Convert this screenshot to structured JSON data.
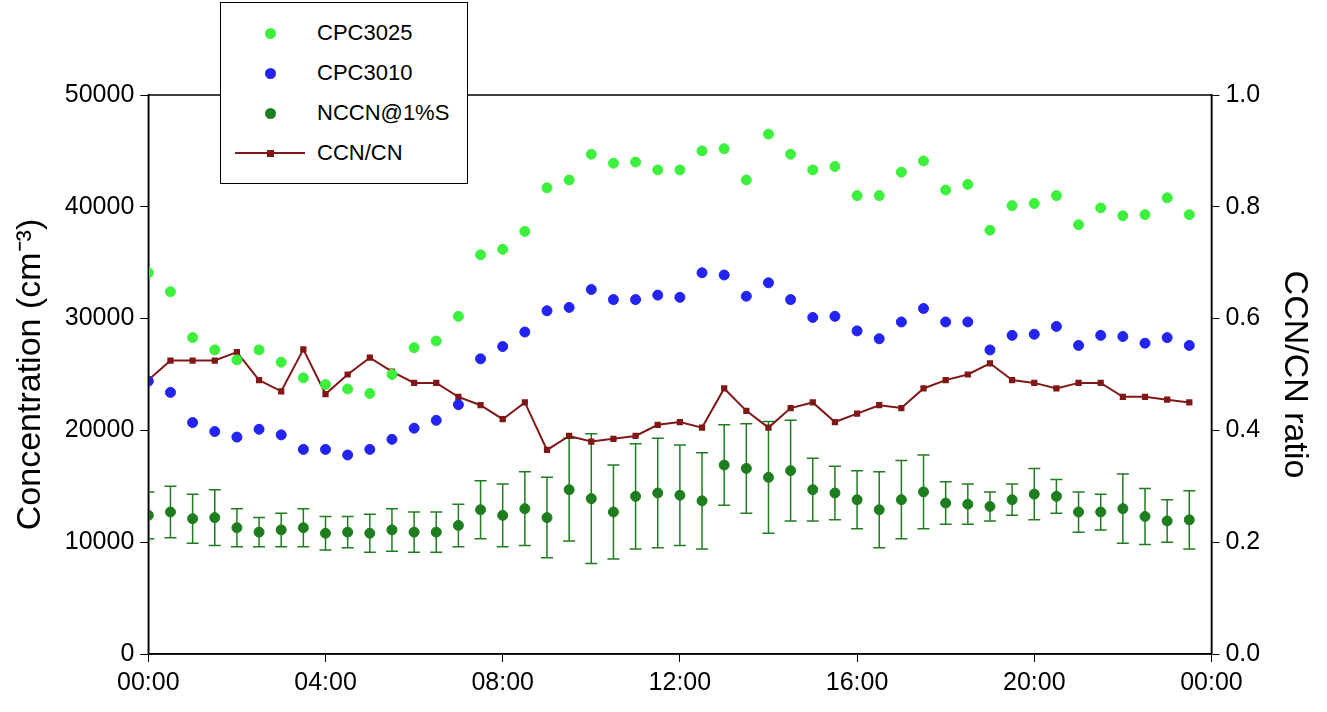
{
  "chart_data": {
    "type": "scatter",
    "y_label": "Concentration (cm⁻³)",
    "y2_label": "CCN/CN ratio",
    "legend": "upper left",
    "grid": false,
    "x": [
      0,
      0.5,
      1,
      1.5,
      2,
      2.5,
      3,
      3.5,
      4,
      4.5,
      5,
      5.5,
      6,
      6.5,
      7,
      7.5,
      8,
      8.5,
      9,
      9.5,
      10,
      10.5,
      11,
      11.5,
      12,
      12.5,
      13,
      13.5,
      14,
      14.5,
      15,
      15.5,
      16,
      16.5,
      17,
      17.5,
      18,
      18.5,
      19,
      19.5,
      20,
      20.5,
      21,
      21.5,
      22,
      22.5,
      23,
      23.5
    ],
    "xlim": [
      0,
      24
    ],
    "xticks": [
      {
        "value": 0,
        "label": "00:00"
      },
      {
        "value": 4,
        "label": "04:00"
      },
      {
        "value": 8,
        "label": "08:00"
      },
      {
        "value": 12,
        "label": "12:00"
      },
      {
        "value": 16,
        "label": "16:00"
      },
      {
        "value": 20,
        "label": "20:00"
      },
      {
        "value": 24,
        "label": "00:00"
      }
    ],
    "ylim": [
      0,
      50000
    ],
    "yticks": [
      0,
      10000,
      20000,
      30000,
      40000,
      50000
    ],
    "y2lim": [
      0,
      1.0
    ],
    "y2ticks": [
      {
        "value": 0,
        "label": "0.0"
      },
      {
        "value": 0.2,
        "label": "0.2"
      },
      {
        "value": 0.4,
        "label": "0.4"
      },
      {
        "value": 0.6,
        "label": "0.6"
      },
      {
        "value": 0.8,
        "label": "0.8"
      },
      {
        "value": 1.0,
        "label": "1.0"
      }
    ],
    "series": [
      {
        "name": "CPC3025",
        "color": "#3ef03e",
        "marker": "circle",
        "values": [
          34100,
          32400,
          28300,
          27200,
          26300,
          27200,
          26100,
          24700,
          24100,
          23700,
          23300,
          25000,
          27400,
          28000,
          30200,
          35700,
          36200,
          37800,
          41700,
          42400,
          44700,
          43900,
          44000,
          43300,
          43300,
          45000,
          45200,
          42400,
          46500,
          44700,
          43300,
          43600,
          41000,
          41000,
          43100,
          44100,
          41500,
          42000,
          37900,
          40100,
          40300,
          41000,
          38400,
          39900,
          39200,
          39300,
          40800,
          39300
        ]
      },
      {
        "name": "CPC3010",
        "color": "#2424f0",
        "marker": "circle",
        "values": [
          24400,
          23400,
          20700,
          19900,
          19400,
          20100,
          19600,
          18300,
          18300,
          17800,
          18300,
          19200,
          20200,
          20900,
          22300,
          26400,
          27500,
          28800,
          30700,
          31000,
          32600,
          31700,
          31700,
          32100,
          31900,
          34100,
          33900,
          32000,
          33200,
          31700,
          30100,
          30200,
          28900,
          28200,
          29700,
          30900,
          29700,
          29700,
          27200,
          28500,
          28600,
          29300,
          27600,
          28500,
          28400,
          27800,
          28300,
          27600
        ]
      },
      {
        "name": "NCCN@1%S",
        "color": "#1e7d1e",
        "marker": "circle",
        "values": [
          12400,
          12700,
          12100,
          12200,
          11300,
          10900,
          11100,
          11300,
          10800,
          10900,
          10800,
          11100,
          10900,
          10900,
          11500,
          12900,
          12400,
          13000,
          12200,
          14700,
          13900,
          12700,
          14100,
          14400,
          14200,
          13700,
          16900,
          16600,
          15800,
          16400,
          14700,
          14400,
          13800,
          12900,
          13800,
          14500,
          13500,
          13400,
          13200,
          13800,
          14300,
          14100,
          12700,
          12700,
          13000,
          12300,
          11900,
          12000
        ],
        "error": [
          2100,
          2300,
          2200,
          2500,
          1700,
          1300,
          1500,
          1700,
          1500,
          1400,
          1700,
          1900,
          1800,
          1800,
          1900,
          2600,
          2800,
          3300,
          3600,
          4600,
          5800,
          4200,
          4700,
          4900,
          4500,
          4300,
          3600,
          4000,
          5000,
          4500,
          2800,
          2400,
          2600,
          3400,
          3500,
          3300,
          1900,
          1800,
          1300,
          1400,
          2300,
          1500,
          1800,
          1600,
          3100,
          2500,
          1900,
          2600
        ]
      },
      {
        "name": "CCN/CN",
        "color": "#801818",
        "type": "line",
        "marker": "square",
        "line_style": "solid",
        "axis": "y2",
        "values": [
          0.49,
          0.525,
          0.525,
          0.525,
          0.54,
          0.49,
          0.47,
          0.545,
          0.465,
          0.5,
          0.53,
          0.505,
          0.485,
          0.485,
          0.46,
          0.445,
          0.42,
          0.45,
          0.365,
          0.39,
          0.38,
          0.385,
          0.39,
          0.41,
          0.415,
          0.405,
          0.475,
          0.435,
          0.405,
          0.44,
          0.45,
          0.415,
          0.43,
          0.445,
          0.44,
          0.475,
          0.49,
          0.5,
          0.52,
          0.49,
          0.485,
          0.475,
          0.485,
          0.485,
          0.46,
          0.46,
          0.455,
          0.45
        ]
      }
    ]
  }
}
